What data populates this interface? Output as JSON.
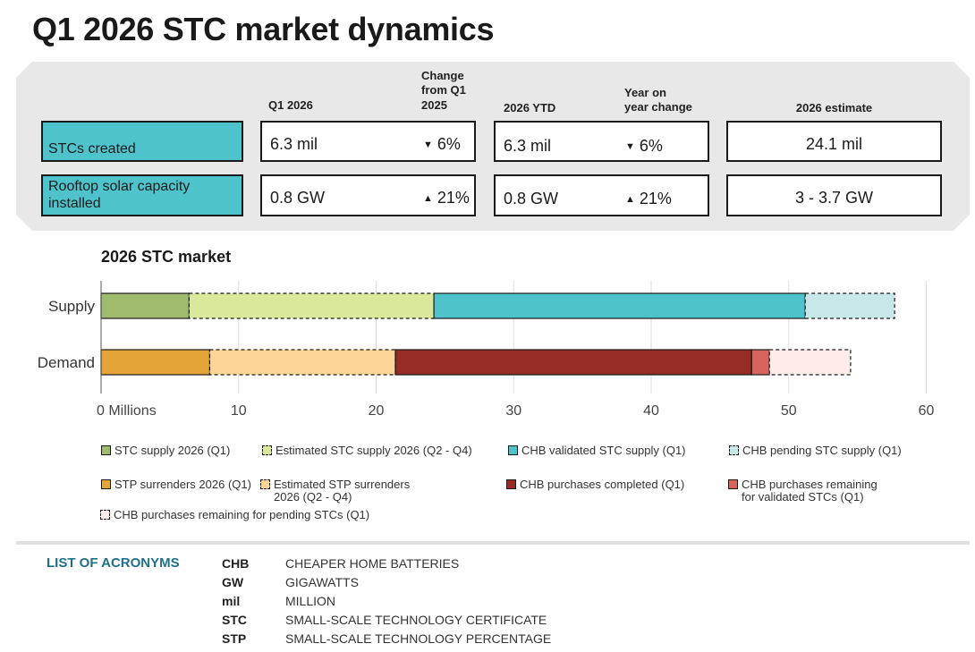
{
  "page_title": "Q1 2026 STC market dynamics",
  "summary": {
    "headers": {
      "q1": "Q1 2026",
      "change_q1": "Change\nfrom Q1\n2025",
      "ytd": "2026 YTD",
      "yoy": "Year on\nyear change",
      "estimate": "2026 estimate"
    },
    "rows": [
      {
        "label": "STCs created",
        "q1": "6.3 mil",
        "q1_change": "6%",
        "q1_direction": "down",
        "ytd": "6.3 mil",
        "yoy_change": "6%",
        "yoy_direction": "down",
        "estimate": "24.1 mil"
      },
      {
        "label": "Rooftop solar capacity installed",
        "q1": "0.8 GW",
        "q1_change": "21%",
        "q1_direction": "up",
        "ytd": "0.8 GW",
        "yoy_change": "21%",
        "yoy_direction": "up",
        "estimate": "3 - 3.7 GW"
      }
    ],
    "label_color": "#4fc3cc"
  },
  "chart_data": {
    "type": "bar",
    "orientation": "horizontal",
    "stacked": true,
    "title": "2026 STC market",
    "categories": [
      "Supply",
      "Demand"
    ],
    "x_ticks": [
      "0 Millions",
      "10",
      "20",
      "30",
      "40",
      "50",
      "60"
    ],
    "xlim": [
      0,
      60
    ],
    "grid": true,
    "segments": {
      "Supply": [
        {
          "name": "STC supply 2026 (Q1)",
          "value": 6.4,
          "color": "#9fbb6e",
          "dashed": false
        },
        {
          "name": "Estimated STC supply 2026 (Q2 - Q4)",
          "value": 17.8,
          "color": "#d9e89a",
          "dashed": true
        },
        {
          "name": "CHB validated STC supply (Q1)",
          "value": 27.0,
          "color": "#4fc3cc",
          "dashed": false
        },
        {
          "name": "CHB pending STC supply (Q1)",
          "value": 6.5,
          "color": "#c8e7e9",
          "dashed": true
        }
      ],
      "Demand": [
        {
          "name": "STP surrenders 2026 (Q1)",
          "value": 7.9,
          "color": "#e5a43a",
          "dashed": false
        },
        {
          "name": "Estimated STP surrenders 2026 (Q2 - Q4)",
          "value": 13.5,
          "color": "#fdd596",
          "dashed": true
        },
        {
          "name": "CHB purchases completed (Q1)",
          "value": 25.9,
          "color": "#972b25",
          "dashed": false
        },
        {
          "name": "CHB purchases remaining for validated STCs (Q1)",
          "value": 1.3,
          "color": "#d8645e",
          "dashed": false
        },
        {
          "name": "CHB purchases remaining for pending STCs (Q1)",
          "value": 5.9,
          "color": "#fdecea",
          "dashed": true
        }
      ]
    },
    "legend": [
      {
        "label": "STC supply 2026 (Q1)",
        "color": "#9fbb6e",
        "dashed": false
      },
      {
        "label": "Estimated STC supply 2026 (Q2 - Q4)",
        "color": "#d9e89a",
        "dashed": true
      },
      {
        "label": "CHB validated STC supply (Q1)",
        "color": "#4fc3cc",
        "dashed": false
      },
      {
        "label": "CHB pending STC supply (Q1)",
        "color": "#c8e7e9",
        "dashed": true
      },
      {
        "label": "STP surrenders 2026 (Q1)",
        "color": "#e5a43a",
        "dashed": false
      },
      {
        "label": "Estimated STP surrenders\n2026 (Q2 - Q4)",
        "color": "#fdd596",
        "dashed": true
      },
      {
        "label": "CHB purchases completed (Q1)",
        "color": "#972b25",
        "dashed": false
      },
      {
        "label": "CHB purchases remaining\nfor validated STCs (Q1)",
        "color": "#d8645e",
        "dashed": false
      },
      {
        "label": "CHB purchases remaining for pending STCs (Q1)",
        "color": "#fdecea",
        "dashed": true
      }
    ]
  },
  "acronyms": {
    "title": "LIST OF ACRONYMS",
    "items": [
      {
        "abbr": "CHB",
        "full": "CHEAPER HOME BATTERIES"
      },
      {
        "abbr": "GW",
        "full": "GIGAWATTS"
      },
      {
        "abbr": "mil",
        "full": "MILLION"
      },
      {
        "abbr": "STC",
        "full": "SMALL-SCALE TECHNOLOGY CERTIFICATE"
      },
      {
        "abbr": "STP",
        "full": "SMALL-SCALE TECHNOLOGY PERCENTAGE"
      }
    ]
  }
}
